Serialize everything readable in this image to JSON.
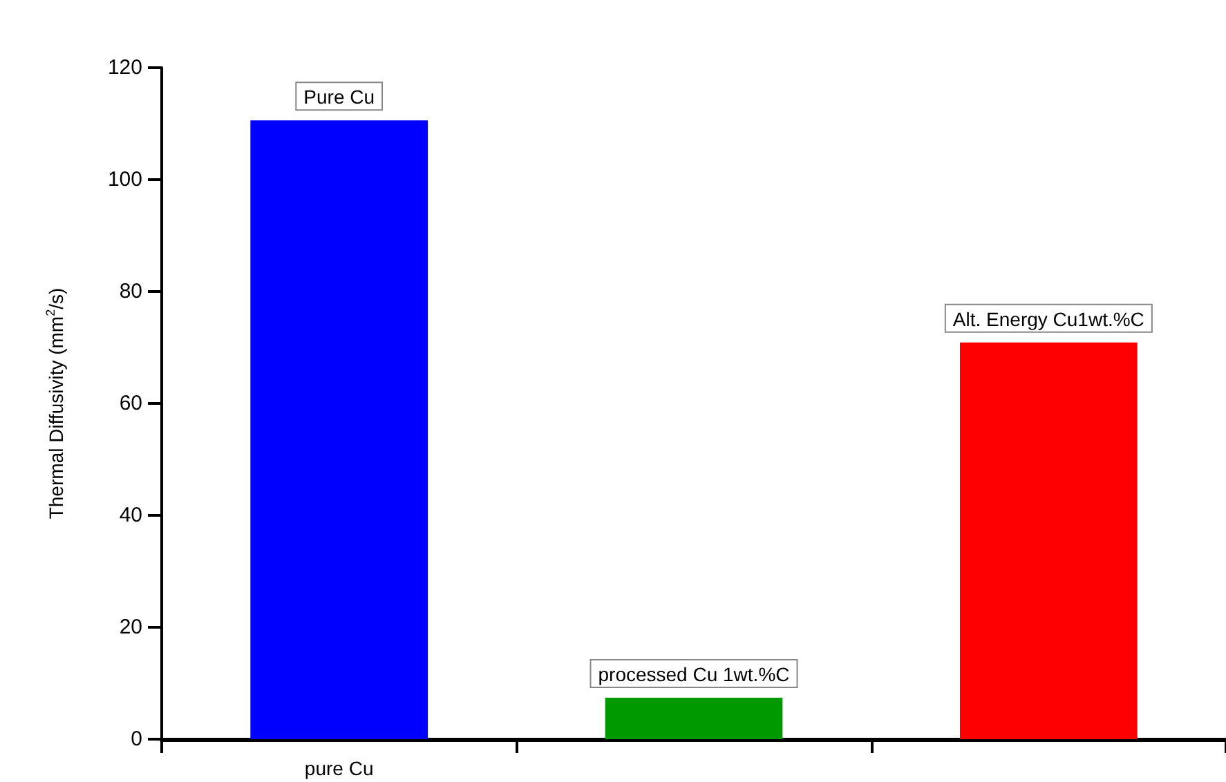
{
  "chart_data": {
    "type": "bar",
    "ylabel": "Thermal Diffusivity (mm$^{2}$/s)",
    "categories": [
      "pure Cu",
      null,
      null
    ],
    "values": [
      110.6,
      7.4,
      70.9
    ],
    "colors": [
      "#0000ff",
      "#009900",
      "#ff0000"
    ],
    "annotations": [
      "Pure Cu",
      "processed Cu 1wt.%C",
      "Alt. Energy Cu1wt.%C"
    ],
    "ylim": [
      0,
      120
    ],
    "yticks": [
      0,
      20,
      40,
      60,
      80,
      100,
      120
    ],
    "grid": false
  }
}
